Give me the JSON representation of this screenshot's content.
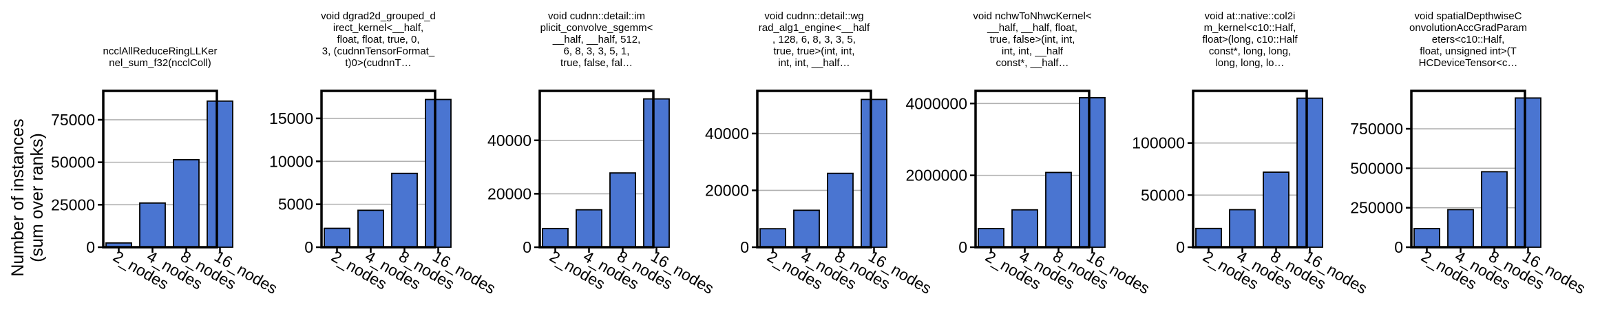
{
  "figure": {
    "ylabel_lines": [
      "Number of instances",
      "(sum over ranks)"
    ]
  },
  "colors": {
    "bar": "#4A75D1",
    "edge": "#000000",
    "grid": "#b0b0b0"
  },
  "chart_data": [
    {
      "type": "bar",
      "title_lines": [
        "ncclAllReduceRingLLKer",
        "nel_sum_f32(ncclColl)"
      ],
      "categories": [
        "2_nodes",
        "4_nodes",
        "8_nodes",
        "16_nodes"
      ],
      "values": [
        2500,
        26000,
        51500,
        86000
      ],
      "ylim": [
        0,
        92000
      ],
      "yticks": [
        0,
        25000,
        50000,
        75000
      ],
      "ytick_labels": [
        "0",
        "25000",
        "50000",
        "75000"
      ],
      "grid": true
    },
    {
      "type": "bar",
      "title_lines": [
        "void dgrad2d_grouped_d",
        "irect_kernel<__half,",
        "float, float, true, 0,",
        "3, (cudnnTensorFormat_",
        "t)0>(cudnnT…"
      ],
      "categories": [
        "2_nodes",
        "4_nodes",
        "8_nodes",
        "16_nodes"
      ],
      "values": [
        2200,
        4300,
        8600,
        17200
      ],
      "ylim": [
        0,
        18200
      ],
      "yticks": [
        0,
        5000,
        10000,
        15000
      ],
      "ytick_labels": [
        "0",
        "5000",
        "10000",
        "15000"
      ],
      "grid": true
    },
    {
      "type": "bar",
      "title_lines": [
        "void cudnn::detail::im",
        "plicit_convolve_sgemm<",
        "__half, __half, 512,",
        "6, 8, 3, 3, 5, 1,",
        "true, false, fal…"
      ],
      "categories": [
        "2_nodes",
        "4_nodes",
        "8_nodes",
        "16_nodes"
      ],
      "values": [
        7000,
        14000,
        27800,
        55500
      ],
      "ylim": [
        0,
        58500
      ],
      "yticks": [
        0,
        20000,
        40000
      ],
      "ytick_labels": [
        "0",
        "20000",
        "40000"
      ],
      "grid": true
    },
    {
      "type": "bar",
      "title_lines": [
        "void cudnn::detail::wg",
        "rad_alg1_engine<__half",
        ", 128, 6, 8, 3, 3, 5,",
        "true, true>(int, int,",
        "int, int, __half…"
      ],
      "categories": [
        "2_nodes",
        "4_nodes",
        "8_nodes",
        "16_nodes"
      ],
      "values": [
        6500,
        13000,
        26000,
        52000
      ],
      "ylim": [
        0,
        55000
      ],
      "yticks": [
        0,
        20000,
        40000
      ],
      "ytick_labels": [
        "0",
        "20000",
        "40000"
      ],
      "grid": true
    },
    {
      "type": "bar",
      "title_lines": [
        "void nchwToNhwcKernel<",
        "__half, __half, float,",
        "true, false>(int, int,",
        "int, int, __half",
        "const*, __half…"
      ],
      "categories": [
        "2_nodes",
        "4_nodes",
        "8_nodes",
        "16_nodes"
      ],
      "values": [
        520000,
        1040000,
        2080000,
        4160000
      ],
      "ylim": [
        0,
        4350000
      ],
      "yticks": [
        0,
        2000000,
        4000000
      ],
      "ytick_labels": [
        "0",
        "2000000",
        "4000000"
      ],
      "grid": true
    },
    {
      "type": "bar",
      "title_lines": [
        "void at::native::col2i",
        "m_kernel<c10::Half,",
        "float>(long, c10::Half",
        "const*, long, long,",
        "long, long, lo…"
      ],
      "categories": [
        "2_nodes",
        "4_nodes",
        "8_nodes",
        "16_nodes"
      ],
      "values": [
        18000,
        36000,
        72000,
        143000
      ],
      "ylim": [
        0,
        150000
      ],
      "yticks": [
        0,
        50000,
        100000
      ],
      "ytick_labels": [
        "0",
        "50000",
        "100000"
      ],
      "grid": true
    },
    {
      "type": "bar",
      "title_lines": [
        "void spatialDepthwiseC",
        "onvolutionAccGradParam",
        "eters<c10::Half,",
        "float, unsigned int>(T",
        "HCDeviceTensor<c…"
      ],
      "categories": [
        "2_nodes",
        "4_nodes",
        "8_nodes",
        "16_nodes"
      ],
      "values": [
        118000,
        238000,
        478000,
        945000
      ],
      "ylim": [
        0,
        990000
      ],
      "yticks": [
        0,
        250000,
        500000,
        750000
      ],
      "ytick_labels": [
        "0",
        "250000",
        "500000",
        "750000"
      ],
      "grid": true
    }
  ]
}
